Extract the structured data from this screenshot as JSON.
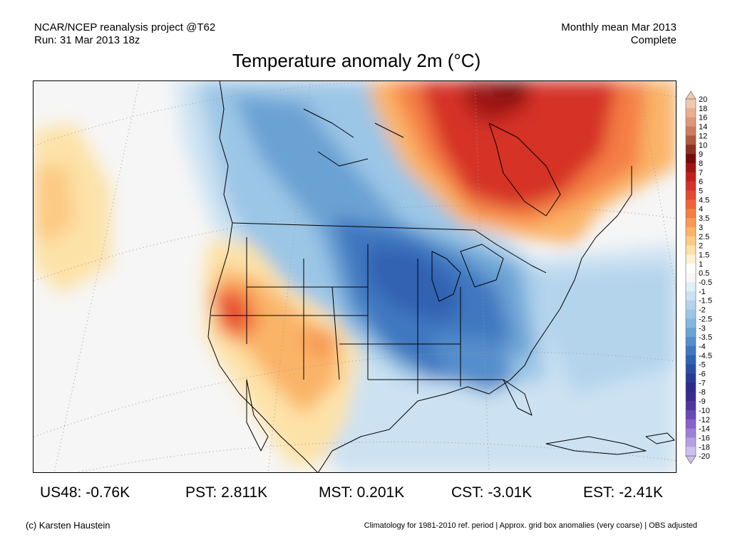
{
  "header": {
    "left_line1": "NCAR/NCEP reanalysis project @T62",
    "left_line2": "Run: 31 Mar 2013 18z",
    "right_line1": "Monthly mean Mar 2013",
    "right_line2": "Complete",
    "title": "Temperature anomaly 2m (°C)"
  },
  "colorbar": {
    "labels": [
      "20",
      "18",
      "16",
      "14",
      "12",
      "10",
      "9",
      "8",
      "7",
      "6",
      "5",
      "4.5",
      "4",
      "3.5",
      "3",
      "2.5",
      "2",
      "1.5",
      "1",
      "0.5",
      "-0.5",
      "-1",
      "-1.5",
      "-2",
      "-2.5",
      "-3",
      "-3.5",
      "-4",
      "-4.5",
      "-5",
      "-6",
      "-7",
      "-8",
      "-9",
      "-10",
      "-12",
      "-14",
      "-16",
      "-18",
      "-20"
    ],
    "colors": [
      "#f0c8b0",
      "#e8b090",
      "#dc9878",
      "#cc7c60",
      "#b05a40",
      "#8c3020",
      "#780a0a",
      "#a01414",
      "#c02020",
      "#d63228",
      "#e44a30",
      "#ee6438",
      "#f47e44",
      "#f89a54",
      "#fab468",
      "#fcca84",
      "#fde2a8",
      "#fef2d0",
      "#ffffff",
      "#f8f8f8",
      "#e4f0f8",
      "#cce2f2",
      "#b4d4ec",
      "#9cc6e6",
      "#84b6de",
      "#6aa2d4",
      "#548ecc",
      "#4078c0",
      "#3062b2",
      "#2a4ea4",
      "#263c96",
      "#2c2c88",
      "#3a2a90",
      "#5234a0",
      "#6a48b6",
      "#8462c8",
      "#9c80d6",
      "#b4a0e2",
      "#ccc0ee"
    ]
  },
  "stats": [
    {
      "label": "US48: -0.76K"
    },
    {
      "label": "PST: 2.811K"
    },
    {
      "label": "MST: 0.201K"
    },
    {
      "label": "CST: -3.01K"
    },
    {
      "label": "EST: -2.41K"
    }
  ],
  "footer": {
    "left": "(c) Karsten Haustein",
    "right": "Climatology for 1981-2010 ref. period | Approx. grid box anomalies (very coarse) | OBS adjusted"
  },
  "map": {
    "region": "North America",
    "background_color": "#f6f6f6",
    "anomaly_regions": [
      {
        "name": "northeast-canada-warm",
        "color": "#d63228"
      },
      {
        "name": "canadian-prairies-cold",
        "color": "#84b6de"
      },
      {
        "name": "midwest-cold-core",
        "color": "#4078c0"
      },
      {
        "name": "southwest-warm",
        "color": "#f89a54"
      },
      {
        "name": "california-warm-core",
        "color": "#e44a30"
      },
      {
        "name": "pacific-warm",
        "color": "#fde2a8"
      },
      {
        "name": "southeast-cold",
        "color": "#548ecc"
      },
      {
        "name": "atlantic-cool",
        "color": "#cce2f2"
      }
    ]
  }
}
